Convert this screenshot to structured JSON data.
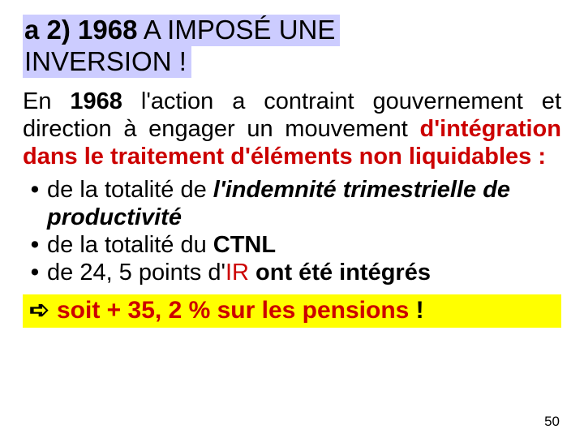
{
  "colors": {
    "title_bg": "#ccccff",
    "highlight_bg": "#ffff00",
    "red": "#cc0000",
    "black": "#000000",
    "page_bg": "#ffffff"
  },
  "fonts": {
    "family": "Arial",
    "title_size_pt": 33,
    "body_size_pt": 29,
    "highlight_size_pt": 30,
    "pagenum_size_pt": 17
  },
  "title": {
    "prefix": "a 2)",
    "year": "1968",
    "rest_line1": " A IMPOSÉ UNE",
    "line2": "INVERSION !"
  },
  "para": {
    "pre": "En ",
    "year": "1968",
    "mid": " l'action a contraint gouvernement et direction à engager un mouvement ",
    "emph": "d'intégration dans le traitement d'éléments non liquidables :"
  },
  "bullets": [
    {
      "pre": "de la totalité de ",
      "ital": "l'indemnité trimestrielle de productivité",
      "post": ""
    },
    {
      "pre": "de la totalité du ",
      "bold": "CTNL",
      "post": ""
    },
    {
      "pre": "de 24, 5 points d'",
      "red": "IR",
      "post": " ont été intégrés"
    }
  ],
  "highlight": {
    "arrow_glyph": "➪",
    "red_text": "soit + 35, 2 % sur les pensions",
    "black_text": " !"
  },
  "page_number": "50"
}
